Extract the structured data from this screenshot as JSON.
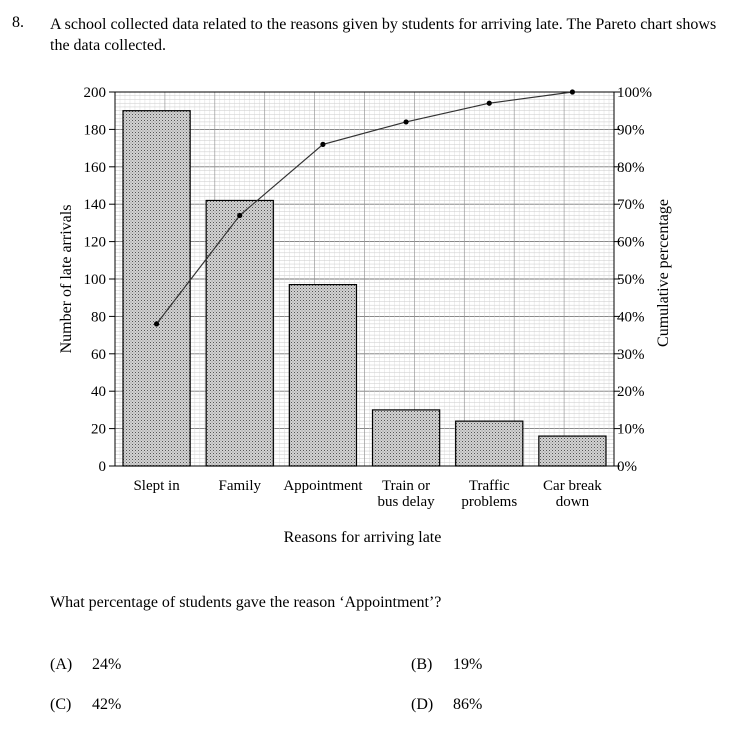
{
  "question": {
    "number": "8.",
    "text": "A school collected data related to the reasons given by students for arriving late. The Pareto chart shows the data collected.",
    "prompt": "What percentage of students gave the reason ‘Appointment’?",
    "options": [
      {
        "letter": "(A)",
        "value": "24%"
      },
      {
        "letter": "(B)",
        "value": "19%"
      },
      {
        "letter": "(C)",
        "value": "42%"
      },
      {
        "letter": "(D)",
        "value": "86%"
      }
    ]
  },
  "chart_data": {
    "type": "bar",
    "subtype": "pareto",
    "categories": [
      [
        "Slept in"
      ],
      [
        "Family"
      ],
      [
        "Appointment"
      ],
      [
        "Train or",
        "bus delay"
      ],
      [
        "Traffic",
        "problems"
      ],
      [
        "Car break",
        "down"
      ]
    ],
    "values": [
      190,
      142,
      97,
      30,
      24,
      16
    ],
    "cumulative_percent": [
      38,
      67,
      86,
      92,
      97,
      100
    ],
    "xlabel": "Reasons for arriving late",
    "ylabel": "Number of late arrivals",
    "y2label": "Cumulative percentage",
    "ylim": [
      0,
      200
    ],
    "y2lim": [
      0,
      100
    ],
    "yticks": [
      "0",
      "20",
      "40",
      "60",
      "80",
      "100",
      "120",
      "140",
      "160",
      "180",
      "200"
    ],
    "y2ticks": [
      "0%",
      "10%",
      "20%",
      "30%",
      "40%",
      "50%",
      "60%",
      "70%",
      "80%",
      "90%",
      "100%"
    ],
    "grid": true
  }
}
